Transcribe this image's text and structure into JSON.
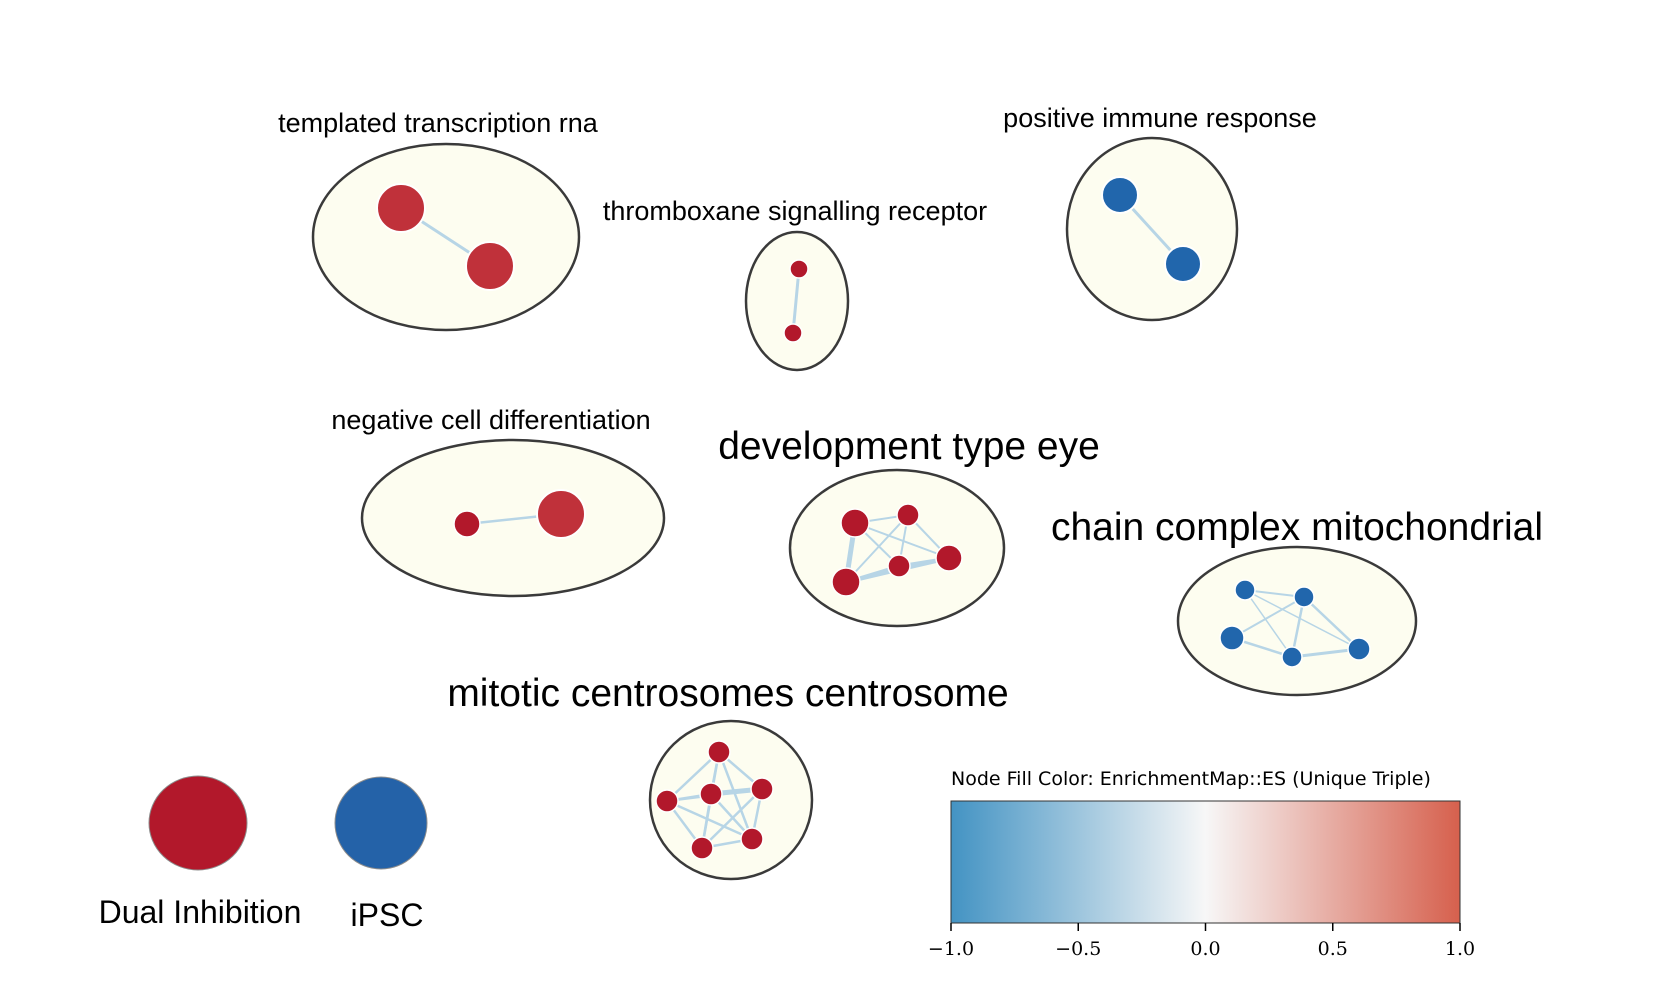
{
  "colors": {
    "background": "#ffffff",
    "cluster_fill": "#fdfdf0",
    "cluster_stroke": "#3a3a3a",
    "edge": "#b7d5e6",
    "node_red": "#c0313a",
    "node_dark_red": "#b2182b",
    "node_blue": "#2166ac",
    "colorbar_low": "#4393c3",
    "colorbar_mid": "#f7f7f7",
    "colorbar_high": "#d6604d"
  },
  "clusters": [
    {
      "id": "templated",
      "label": "templated transcription rna",
      "label_size": "small",
      "node_color": "red"
    },
    {
      "id": "thromboxane",
      "label": "thromboxane signalling receptor",
      "label_size": "small",
      "node_color": "dark_red"
    },
    {
      "id": "immune",
      "label": "positive immune response",
      "label_size": "small",
      "node_color": "blue"
    },
    {
      "id": "negative",
      "label": "negative cell differentiation",
      "label_size": "small",
      "node_color": "red"
    },
    {
      "id": "development",
      "label": "development type eye",
      "label_size": "big",
      "node_color": "dark_red"
    },
    {
      "id": "mitochondrial",
      "label": "chain complex mitochondrial",
      "label_size": "big",
      "node_color": "blue"
    },
    {
      "id": "mitotic",
      "label": "mitotic centrosomes centrosome",
      "label_size": "big",
      "node_color": "dark_red"
    }
  ],
  "legend": {
    "items": [
      {
        "label": "Dual Inhibition",
        "color": "#b2182b",
        "icon": "red-circle-icon"
      },
      {
        "label": "iPSC",
        "color": "#2462a8",
        "icon": "blue-circle-icon"
      }
    ]
  },
  "colorbar": {
    "title": "Node Fill Color:  EnrichmentMap::ES (Unique Triple)",
    "min": -1.0,
    "max": 1.0,
    "ticks": [
      "−1.0",
      "−0.5",
      "0.0",
      "0.5",
      "1.0"
    ],
    "tick_values": [
      -1.0,
      -0.5,
      0.0,
      0.5,
      1.0
    ]
  }
}
